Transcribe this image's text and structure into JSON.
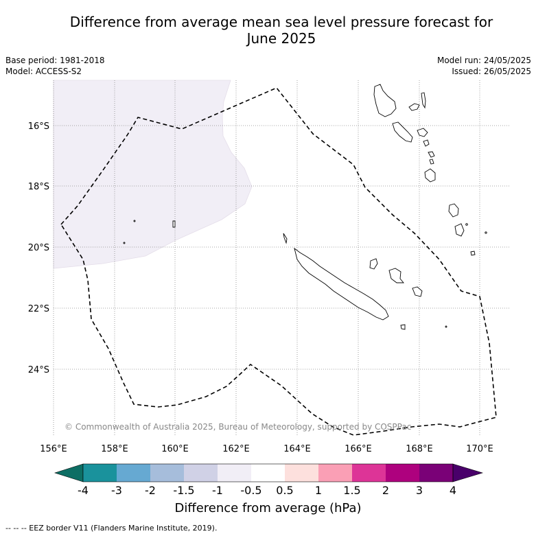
{
  "title_line1": "Difference from average mean sea level pressure forecast for",
  "title_line2": "June 2025",
  "meta": {
    "base_period": "Base period: 1981-2018",
    "model": "Model: ACCESS-S2",
    "model_run": "Model run: 24/05/2025",
    "issued": "Issued: 26/05/2025"
  },
  "map": {
    "lon_labels": [
      "156°E",
      "158°E",
      "160°E",
      "162°E",
      "164°E",
      "166°E",
      "168°E",
      "170°E"
    ],
    "lat_labels": [
      "16°S",
      "18°S",
      "20°S",
      "22°S",
      "24°S"
    ],
    "copyright": "© Commonwealth of Australia 2025, Bureau of Meteorology, supported by COSPPac"
  },
  "colorbar": {
    "label": "Difference from average (hPa)",
    "ticks": [
      "-4",
      "-3",
      "-2",
      "-1.5",
      "-1",
      "-0.5",
      "0.5",
      "1",
      "1.5",
      "2",
      "3",
      "4"
    ],
    "colors": [
      "#0d6e64",
      "#1a929c",
      "#66a9d2",
      "#a6bddb",
      "#d0d1e6",
      "#f1eef6",
      "#ffffff",
      "#fde0dd",
      "#fa9fb5",
      "#dd3497",
      "#ae017e",
      "#7a0177",
      "#49006a"
    ]
  },
  "footer": "--  --  -- EEZ border V11 (Flanders Marine Institute, 2019)."
}
